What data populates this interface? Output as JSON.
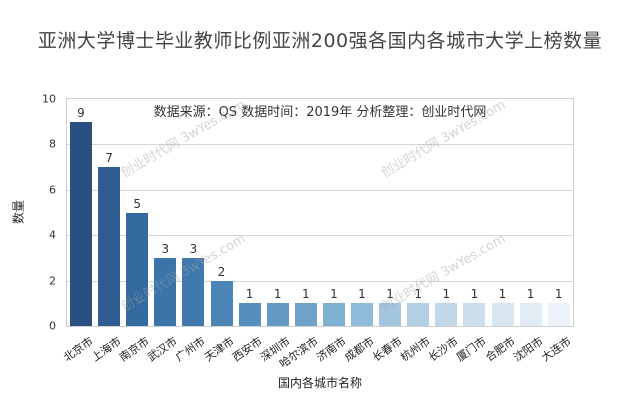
{
  "chart_data": {
    "type": "bar",
    "title": "亚洲大学博士毕业教师比例亚洲200强各国内各城市大学上榜数量",
    "annotation": "数据来源：QS 数据时间：2019年 分析整理：创业时代网",
    "xlabel": "国内各城市名称",
    "ylabel": "数量",
    "ylim": [
      0,
      10
    ],
    "yticks": [
      0,
      2,
      4,
      6,
      8,
      10
    ],
    "grid": true,
    "legend": null,
    "categories": [
      "北京市",
      "上海市",
      "南京市",
      "武汉市",
      "广州市",
      "天津市",
      "西安市",
      "深圳市",
      "哈尔滨市",
      "济南市",
      "成都市",
      "长春市",
      "杭州市",
      "长沙市",
      "厦门市",
      "合肥市",
      "沈阳市",
      "大连市"
    ],
    "values": [
      9,
      7,
      5,
      3,
      3,
      2,
      1,
      1,
      1,
      1,
      1,
      1,
      1,
      1,
      1,
      1,
      1,
      1
    ],
    "colors": [
      "#2b4f7e",
      "#2f5d92",
      "#336a9f",
      "#3a74a8",
      "#4179ae",
      "#4a85b6",
      "#568fbe",
      "#639ac4",
      "#6fa3ca",
      "#7fb0d2",
      "#90bcd9",
      "#a3c6de",
      "#b2cfe4",
      "#c0d8e9",
      "#cddfee",
      "#d8e6f2",
      "#e2ecf6",
      "#ebf2f9"
    ]
  },
  "watermark": {
    "text": "创业时代网 3wYes.com"
  }
}
